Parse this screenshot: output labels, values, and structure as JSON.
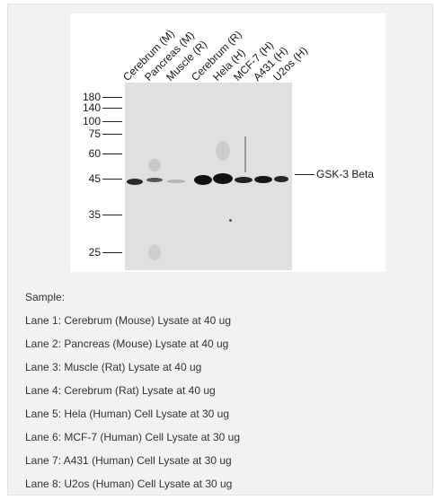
{
  "figure": {
    "lanes": [
      "Cerebrum (M)",
      "Pancreas (M)",
      "Muscle (R)",
      "Cerebrum (R)",
      "Hela (H)",
      "MCF-7 (H)",
      "A431 (H)",
      "U2os (H)"
    ],
    "markers": [
      "180",
      "140",
      "100",
      "75",
      "60",
      "45",
      "35",
      "25"
    ],
    "target": "GSK-3 Beta"
  },
  "legend": {
    "heading": "Sample:",
    "lines": [
      "Lane 1: Cerebrum (Mouse) Lysate at 40 ug",
      "Lane 2: Pancreas (Mouse) Lysate at 40 ug",
      "Lane 3: Muscle (Rat) Lysate at 40 ug",
      "Lane 4: Cerebrum (Rat) Lysate at 40 ug",
      "Lane 5: Hela (Human) Cell Lysate at 30 ug",
      "Lane 6: MCF-7 (Human) Cell Lysate at 30 ug",
      "Lane 7: A431 (Human) Cell Lysate at 30 ug",
      "Lane 8: U2os (Human) Cell Lysate at 30 ug"
    ]
  },
  "colors": {
    "panel_background": "#f2f2f2",
    "blot_background": "#e0e0e0",
    "band": "#1a1a1a"
  }
}
